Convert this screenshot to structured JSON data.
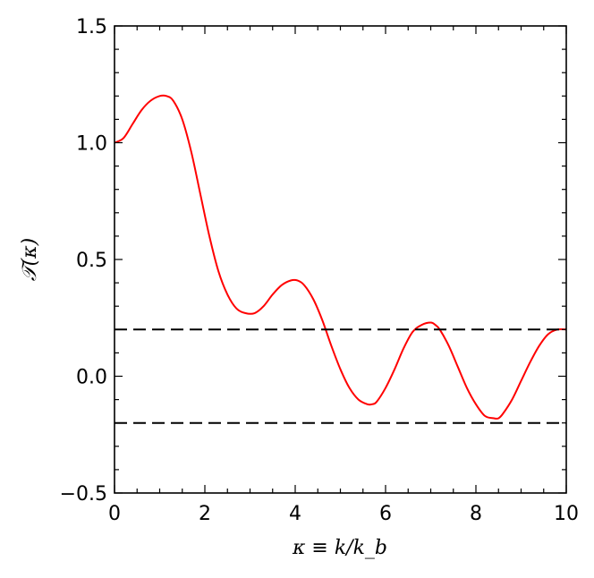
{
  "chart_data": {
    "type": "line",
    "title": "",
    "xlabel": "κ ≡ k/k_b",
    "ylabel": "𝒯(κ)",
    "xlim": [
      0,
      10
    ],
    "ylim": [
      -0.5,
      1.5
    ],
    "xticks": [
      0,
      2,
      4,
      6,
      8,
      10
    ],
    "xtick_labels": [
      "0",
      "2",
      "4",
      "6",
      "8",
      "10"
    ],
    "yticks": [
      -0.5,
      0.0,
      0.5,
      1.0,
      1.5
    ],
    "ytick_labels": [
      "−0.5",
      "0.0",
      "0.5",
      "1.0",
      "1.5"
    ],
    "grid": false,
    "legend": "none",
    "series": [
      {
        "color": "#ff0000",
        "style": "solid",
        "x": [
          0,
          0.2,
          0.4,
          0.6,
          0.8,
          1.0,
          1.15,
          1.3,
          1.5,
          1.7,
          1.9,
          2.1,
          2.3,
          2.5,
          2.7,
          2.9,
          3.1,
          3.3,
          3.5,
          3.7,
          3.9,
          4.05,
          4.2,
          4.4,
          4.6,
          4.8,
          5.0,
          5.2,
          5.4,
          5.6,
          5.7,
          5.8,
          6.0,
          6.2,
          6.4,
          6.6,
          6.8,
          7.0,
          7.1,
          7.2,
          7.4,
          7.6,
          7.8,
          8.0,
          8.2,
          8.4,
          8.5,
          8.6,
          8.8,
          9.0,
          9.2,
          9.4,
          9.6,
          9.8,
          10.0
        ],
        "y": [
          1.0,
          1.02,
          1.08,
          1.14,
          1.18,
          1.2,
          1.2,
          1.18,
          1.1,
          0.96,
          0.78,
          0.6,
          0.45,
          0.35,
          0.29,
          0.27,
          0.27,
          0.3,
          0.35,
          0.39,
          0.41,
          0.41,
          0.39,
          0.33,
          0.24,
          0.13,
          0.03,
          -0.05,
          -0.1,
          -0.12,
          -0.12,
          -0.11,
          -0.05,
          0.03,
          0.12,
          0.19,
          0.22,
          0.23,
          0.22,
          0.2,
          0.13,
          0.04,
          -0.05,
          -0.12,
          -0.17,
          -0.18,
          -0.18,
          -0.16,
          -0.1,
          -0.02,
          0.06,
          0.13,
          0.18,
          0.2,
          0.2
        ]
      },
      {
        "color": "#000000",
        "style": "dashed",
        "x": [
          0,
          10
        ],
        "y": [
          0.2,
          0.2
        ]
      },
      {
        "color": "#000000",
        "style": "dashed",
        "x": [
          0,
          10
        ],
        "y": [
          -0.2,
          -0.2
        ]
      }
    ]
  }
}
